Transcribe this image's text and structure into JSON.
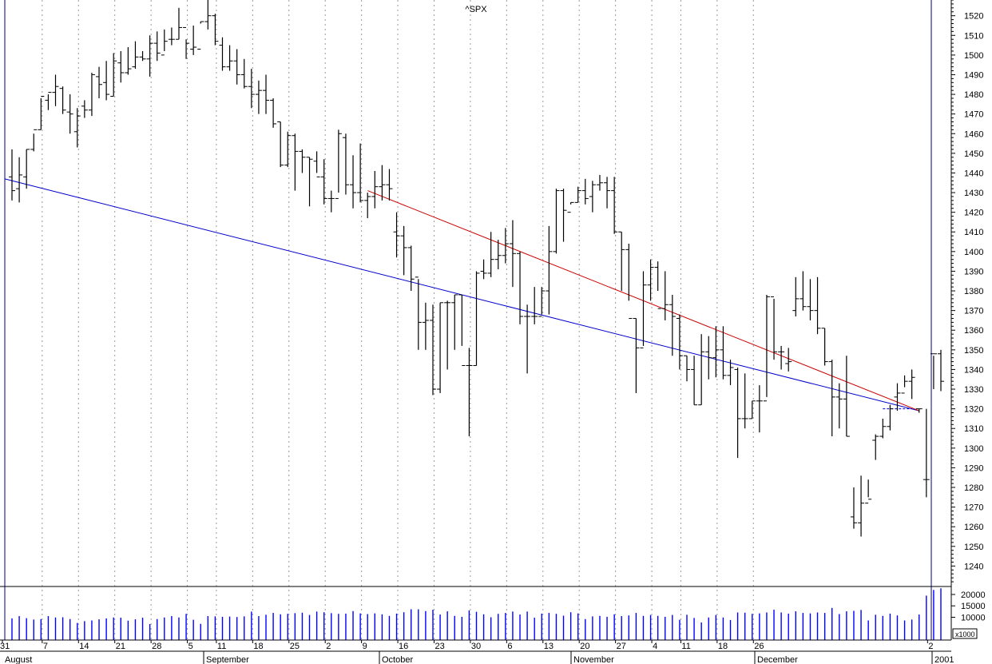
{
  "chart_data": {
    "type": "ohlc",
    "title": "^SPX",
    "price_axis": {
      "ylim": [
        1230,
        1528
      ],
      "ticks": [
        1240,
        1250,
        1260,
        1270,
        1280,
        1290,
        1300,
        1310,
        1320,
        1330,
        1340,
        1350,
        1360,
        1370,
        1380,
        1390,
        1400,
        1410,
        1420,
        1430,
        1440,
        1450,
        1460,
        1470,
        1480,
        1490,
        1500,
        1510,
        1520
      ]
    },
    "volume_axis": {
      "ylim": [
        0,
        23500
      ],
      "ticks": [
        10000,
        15000,
        20000
      ],
      "tick_labels": [
        "10000",
        "15000",
        "20000"
      ],
      "unit_label": "x1000"
    },
    "x_axis": {
      "day_ticks": [
        "31",
        "7",
        "14",
        "21",
        "28",
        "5",
        "11",
        "18",
        "25",
        "2",
        "9",
        "16",
        "23",
        "30",
        "6",
        "13",
        "20",
        "27",
        "4",
        "11",
        "18",
        "26",
        "2"
      ],
      "months": [
        "August",
        "September",
        "October",
        "November",
        "December",
        "2001"
      ],
      "grid": "dotted vertical at day ticks"
    },
    "bars": [
      [
        1438,
        1452,
        1426,
        1431
      ],
      [
        1432,
        1448,
        1425,
        1439
      ],
      [
        1438,
        1452,
        1432,
        1452
      ],
      [
        1452,
        1460,
        1451,
        1462
      ],
      [
        1462,
        1478,
        1462,
        1479
      ],
      [
        1477,
        1480,
        1472,
        1481
      ],
      [
        1481,
        1490,
        1474,
        1484
      ],
      [
        1483,
        1484,
        1470,
        1472
      ],
      [
        1471,
        1480,
        1460,
        1470
      ],
      [
        1461,
        1473,
        1453,
        1469
      ],
      [
        1474,
        1477,
        1468,
        1472
      ],
      [
        1472,
        1491,
        1469,
        1490
      ],
      [
        1489,
        1494,
        1478,
        1485
      ],
      [
        1486,
        1497,
        1477,
        1480
      ],
      [
        1479,
        1501,
        1479,
        1497
      ],
      [
        1496,
        1502,
        1486,
        1491
      ],
      [
        1491,
        1504,
        1490,
        1493
      ],
      [
        1494,
        1507,
        1493,
        1499
      ],
      [
        1499,
        1502,
        1497,
        1498
      ],
      [
        1498,
        1510,
        1489,
        1506
      ],
      [
        1506,
        1512,
        1497,
        1501
      ],
      [
        1500,
        1513,
        1502,
        1507
      ],
      [
        1508,
        1514,
        1505,
        1508
      ],
      [
        1508,
        1524,
        1508,
        1514
      ],
      [
        1514,
        1508,
        1498,
        1506
      ],
      [
        1503,
        1515,
        1500,
        1504
      ],
      [
        1503,
        1517,
        1516,
        1517
      ],
      [
        1517,
        1530,
        1513,
        1520
      ],
      [
        1520,
        1521,
        1505,
        1507
      ],
      [
        1505,
        1509,
        1492,
        1494
      ],
      [
        1494,
        1505,
        1492,
        1497
      ],
      [
        1497,
        1503,
        1485,
        1490
      ],
      [
        1490,
        1498,
        1483,
        1484
      ],
      [
        1484,
        1493,
        1473,
        1480
      ],
      [
        1480,
        1487,
        1470,
        1482
      ],
      [
        1482,
        1490,
        1470,
        1477
      ],
      [
        1477,
        1478,
        1463,
        1465
      ],
      [
        1466,
        1466,
        1443,
        1444
      ],
      [
        1444,
        1461,
        1443,
        1459
      ],
      [
        1459,
        1460,
        1431,
        1451
      ],
      [
        1451,
        1452,
        1440,
        1448
      ],
      [
        1448,
        1448,
        1423,
        1447
      ],
      [
        1446,
        1451,
        1440,
        1438
      ],
      [
        1438,
        1447,
        1424,
        1427
      ],
      [
        1427,
        1431,
        1420,
        1427
      ],
      [
        1427,
        1462,
        1430,
        1460
      ],
      [
        1458,
        1460,
        1429,
        1434
      ],
      [
        1434,
        1449,
        1422,
        1430
      ],
      [
        1430,
        1455,
        1425,
        1426
      ],
      [
        1426,
        1430,
        1417,
        1428
      ],
      [
        1428,
        1441,
        1422,
        1433
      ],
      [
        1433,
        1444,
        1426,
        1434
      ],
      [
        1434,
        1442,
        1426,
        1432
      ],
      [
        1410,
        1420,
        1397,
        1408
      ],
      [
        1408,
        1413,
        1388,
        1402
      ],
      [
        1402,
        1403,
        1380,
        1386
      ],
      [
        1387,
        1386,
        1350,
        1364
      ],
      [
        1364,
        1374,
        1350,
        1365
      ],
      [
        1365,
        1373,
        1327,
        1330
      ],
      [
        1330,
        1374,
        1328,
        1374
      ],
      [
        1374,
        1375,
        1340,
        1374
      ],
      [
        1374,
        1378,
        1350,
        1378
      ],
      [
        1378,
        1378,
        1352,
        1342
      ],
      [
        1342,
        1351,
        1306,
        1342
      ],
      [
        1342,
        1390,
        1342,
        1389
      ],
      [
        1390,
        1396,
        1386,
        1389
      ],
      [
        1389,
        1410,
        1387,
        1396
      ],
      [
        1396,
        1406,
        1391,
        1398
      ],
      [
        1398,
        1412,
        1394,
        1404
      ],
      [
        1404,
        1416,
        1382,
        1399
      ],
      [
        1399,
        1400,
        1363,
        1367
      ],
      [
        1367,
        1373,
        1338,
        1367
      ],
      [
        1367,
        1382,
        1363,
        1367
      ],
      [
        1367,
        1382,
        1368,
        1380
      ],
      [
        1380,
        1413,
        1368,
        1400
      ],
      [
        1400,
        1432,
        1399,
        1431
      ],
      [
        1431,
        1432,
        1405,
        1421
      ],
      [
        1420,
        1425,
        1424,
        1425
      ],
      [
        1425,
        1433,
        1425,
        1431
      ],
      [
        1431,
        1437,
        1424,
        1427
      ],
      [
        1428,
        1436,
        1420,
        1434
      ],
      [
        1434,
        1439,
        1431,
        1435
      ],
      [
        1435,
        1438,
        1422,
        1431
      ],
      [
        1431,
        1438,
        1409,
        1410
      ],
      [
        1410,
        1410,
        1380,
        1401
      ],
      [
        1401,
        1404,
        1375,
        1366
      ],
      [
        1366,
        1366,
        1328,
        1351
      ],
      [
        1351,
        1390,
        1352,
        1383
      ],
      [
        1383,
        1396,
        1375,
        1392
      ],
      [
        1392,
        1395,
        1380,
        1371
      ],
      [
        1371,
        1390,
        1365,
        1373
      ],
      [
        1373,
        1378,
        1347,
        1367
      ],
      [
        1366,
        1368,
        1340,
        1347
      ],
      [
        1347,
        1347,
        1334,
        1340
      ],
      [
        1340,
        1347,
        1322,
        1322
      ],
      [
        1322,
        1358,
        1322,
        1349
      ],
      [
        1349,
        1357,
        1335,
        1346
      ],
      [
        1346,
        1362,
        1336,
        1350
      ],
      [
        1350,
        1362,
        1335,
        1337
      ],
      [
        1337,
        1345,
        1332,
        1341
      ],
      [
        1340,
        1341,
        1295,
        1315
      ],
      [
        1315,
        1338,
        1310,
        1315
      ],
      [
        1315,
        1324,
        1315,
        1324
      ],
      [
        1324,
        1332,
        1308,
        1324
      ],
      [
        1324,
        1378,
        1326,
        1377
      ],
      [
        1377,
        1376,
        1345,
        1349
      ],
      [
        1349,
        1352,
        1340,
        1349
      ],
      [
        1343,
        1351,
        1339,
        1344
      ],
      [
        1370,
        1387,
        1367,
        1376
      ],
      [
        1376,
        1390,
        1370,
        1372
      ],
      [
        1372,
        1386,
        1365,
        1370
      ],
      [
        1370,
        1387,
        1358,
        1361
      ],
      [
        1361,
        1361,
        1342,
        1344
      ],
      [
        1344,
        1345,
        1306,
        1326
      ],
      [
        1326,
        1333,
        1310,
        1325
      ],
      [
        1325,
        1347,
        1306,
        1306
      ],
      [
        1265,
        1280,
        1259,
        1262
      ],
      [
        1262,
        1286,
        1255,
        1272
      ],
      [
        1272,
        1284,
        1275,
        1274
      ],
      [
        1304,
        1307,
        1294,
        1306
      ],
      [
        1306,
        1315,
        1305,
        1311
      ],
      [
        1311,
        1322,
        1309,
        1320
      ],
      [
        1326,
        1333,
        1319,
        1328
      ],
      [
        1328,
        1337,
        1331,
        1334
      ],
      [
        1334,
        1340,
        1325,
        1336
      ],
      [
        1320,
        1320,
        1318,
        1320
      ],
      [
        1284,
        1320,
        1275,
        1284
      ],
      [
        1348,
        1347,
        1330,
        1348
      ],
      [
        1348,
        1350,
        1329,
        1334
      ]
    ],
    "volume": [
      9500,
      10500,
      9600,
      9000,
      9200,
      10500,
      9900,
      10000,
      9200,
      7500,
      8300,
      8600,
      9100,
      9500,
      9900,
      9800,
      8500,
      9100,
      9800,
      7000,
      9200,
      9900,
      10500,
      9900,
      11500,
      8900,
      7100,
      10500,
      10400,
      10200,
      10300,
      10100,
      10400,
      12500,
      10500,
      11100,
      11900,
      11300,
      11500,
      11800,
      12000,
      11000,
      12500,
      12200,
      11800,
      11500,
      11600,
      12700,
      11700,
      11400,
      11700,
      11300,
      10600,
      11600,
      12200,
      13500,
      13500,
      12700,
      13300,
      11200,
      12600,
      10600,
      10200,
      13000,
      12400,
      11300,
      10000,
      11500,
      11900,
      12500,
      11200,
      12500,
      9800,
      11600,
      11900,
      11500,
      10700,
      12200,
      11700,
      9200,
      10400,
      10600,
      10200,
      11300,
      10500,
      10800,
      11900,
      10600,
      11000,
      10600,
      10200,
      11000,
      8900,
      11100,
      9700,
      7700,
      9900,
      11000,
      9900,
      8800,
      12100,
      12000,
      11500,
      11700,
      12100,
      13300,
      12100,
      11600,
      12600,
      11900,
      11700,
      12100,
      11900,
      14100,
      11400,
      12600,
      12800,
      13200,
      8600,
      11100,
      10600,
      11600,
      10800,
      8600,
      9000,
      11200,
      19500,
      22000,
      22700
    ],
    "trendlines": [
      {
        "color": "#0000cc",
        "x1": 0,
        "y1": 1437,
        "x2": 125,
        "y2": 1319
      },
      {
        "color": "#cc0000",
        "x1": 50,
        "y1": 1431,
        "x2": 125,
        "y2": 1319
      }
    ],
    "marker_line_y": 1320
  }
}
